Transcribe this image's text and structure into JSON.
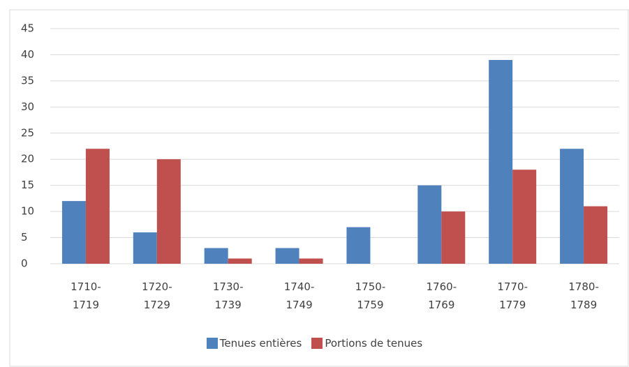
{
  "chart_data": {
    "type": "bar",
    "categories": [
      "1710-1719",
      "1720-1729",
      "1730-1739",
      "1740-1749",
      "1750-1759",
      "1760-1769",
      "1770-1779",
      "1780-1789"
    ],
    "series": [
      {
        "name": "Tenues entières",
        "color": "#4f81bd",
        "values": [
          12,
          6,
          3,
          3,
          7,
          15,
          39,
          22
        ]
      },
      {
        "name": "Portions de tenues",
        "color": "#c0504d",
        "values": [
          22,
          20,
          1,
          1,
          0,
          10,
          18,
          11
        ]
      }
    ],
    "ylim": [
      0,
      45
    ],
    "yticks": [
      0,
      5,
      10,
      15,
      20,
      25,
      30,
      35,
      40,
      45
    ],
    "grid": true,
    "legend": "bottom"
  }
}
